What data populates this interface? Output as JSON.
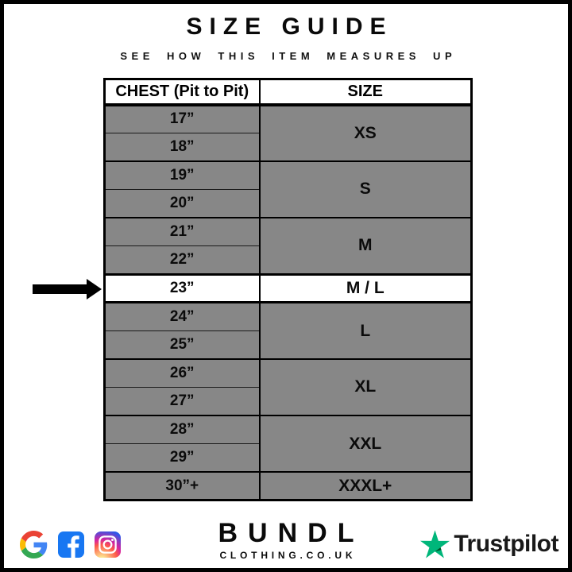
{
  "page": {
    "title": "SIZE GUIDE",
    "subtitle": "SEE HOW THIS ITEM MEASURES UP"
  },
  "table": {
    "headers": [
      "CHEST (Pit to Pit)",
      "SIZE"
    ],
    "groups": [
      {
        "measurements": [
          "17”",
          "18”"
        ],
        "size": "XS",
        "highlight": false
      },
      {
        "measurements": [
          "19”",
          "20”"
        ],
        "size": "S",
        "highlight": false
      },
      {
        "measurements": [
          "21”",
          "22”"
        ],
        "size": "M",
        "highlight": false
      },
      {
        "measurements": [
          "23”"
        ],
        "size": "M / L",
        "highlight": true
      },
      {
        "measurements": [
          "24”",
          "25”"
        ],
        "size": "L",
        "highlight": false
      },
      {
        "measurements": [
          "26”",
          "27”"
        ],
        "size": "XL",
        "highlight": false
      },
      {
        "measurements": [
          "28”",
          "29”"
        ],
        "size": "XXL",
        "highlight": false
      },
      {
        "measurements": [
          "30”+"
        ],
        "size": "XXXL+",
        "highlight": false
      }
    ],
    "highlighted_measurement": "23”"
  },
  "chart_data": {
    "type": "table",
    "title": "SIZE GUIDE",
    "columns": [
      "CHEST (Pit to Pit)",
      "SIZE"
    ],
    "rows": [
      [
        "17”",
        "XS"
      ],
      [
        "18”",
        "XS"
      ],
      [
        "19”",
        "S"
      ],
      [
        "20”",
        "S"
      ],
      [
        "21”",
        "M"
      ],
      [
        "22”",
        "M"
      ],
      [
        "23”",
        "M / L"
      ],
      [
        "24”",
        "L"
      ],
      [
        "25”",
        "L"
      ],
      [
        "26”",
        "XL"
      ],
      [
        "27”",
        "XL"
      ],
      [
        "28”",
        "XXL"
      ],
      [
        "29”",
        "XXL"
      ],
      [
        "30”+",
        "XXXL+"
      ]
    ],
    "highlighted_row": [
      "23”",
      "M / L"
    ]
  },
  "footer": {
    "social_icons": [
      "google-icon",
      "facebook-icon",
      "instagram-icon"
    ],
    "brand": {
      "name": "BUNDL",
      "domain": "CLOTHING.CO.UK"
    },
    "trustpilot_label": "Trustpilot"
  },
  "colors": {
    "row_gray": "#878787",
    "highlight_white": "#ffffff",
    "facebook_blue": "#1877f2",
    "trustpilot_green": "#00b67a",
    "trustpilot_dark_green": "#005128"
  }
}
